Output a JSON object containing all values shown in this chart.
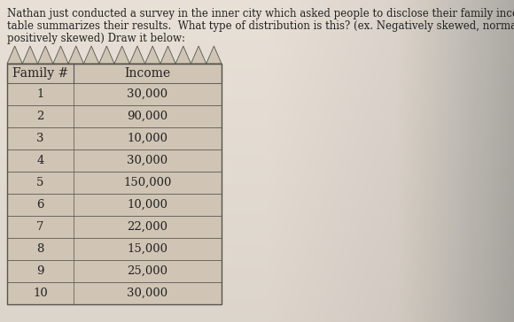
{
  "title_line1": "Nathan just conducted a survey in the inner city which asked people to disclose their family income.  The following",
  "title_line2": "table summarizes their results.  What type of distribution is this? (ex. Negatively skewed, normal distribution, or",
  "title_line3": "positively skewed) Draw it below:",
  "col_headers": [
    "Family #",
    "Income"
  ],
  "rows": [
    [
      "1",
      "30,000"
    ],
    [
      "2",
      "90,000"
    ],
    [
      "3",
      "10,000"
    ],
    [
      "4",
      "30,000"
    ],
    [
      "5",
      "150,000"
    ],
    [
      "6",
      "10,000"
    ],
    [
      "7",
      "22,000"
    ],
    [
      "8",
      "15,000"
    ],
    [
      "9",
      "25,000"
    ],
    [
      "10",
      "30,000"
    ]
  ],
  "bg_light": "#e8ddd0",
  "bg_mid": "#d8ccc0",
  "bg_dark": "#b8a898",
  "cell_bg": "#d0c4b4",
  "border_color": "#555550",
  "text_color": "#222222",
  "title_fontsize": 8.5,
  "cell_fontsize": 9.5,
  "header_fontsize": 10.0
}
